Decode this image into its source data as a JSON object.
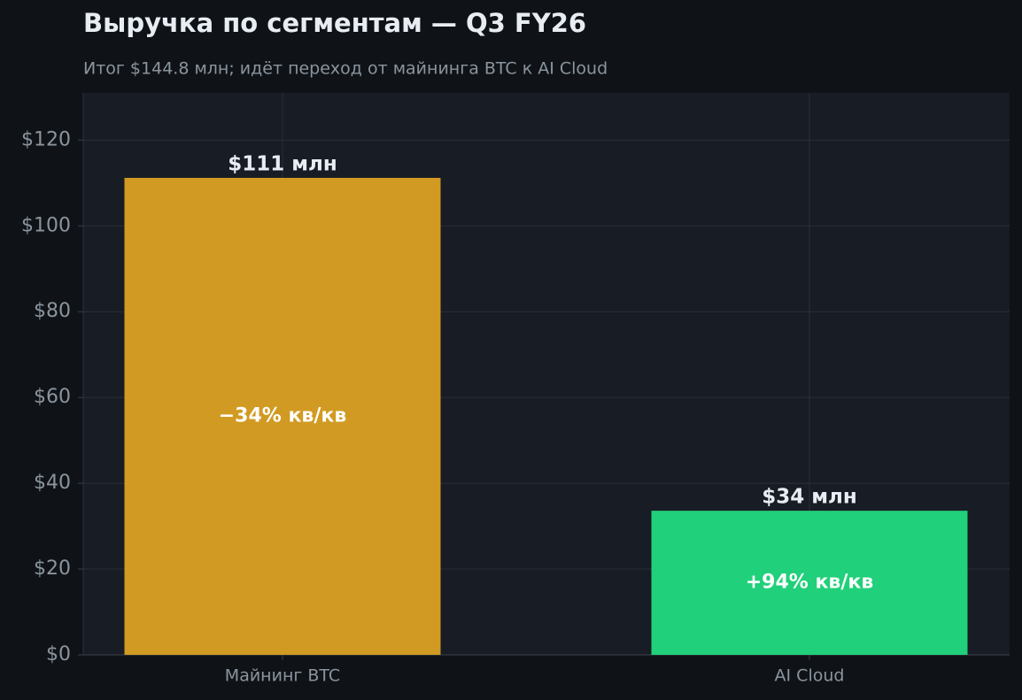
{
  "chart_data": {
    "type": "bar",
    "title": "Выручка по сегментам — Q3 FY26",
    "subtitle": "Итог $144.8 млн; идёт переход от майнинга BTC к AI Cloud",
    "categories": [
      "Майнинг BTC",
      "AI Cloud"
    ],
    "values": [
      111.2,
      33.6
    ],
    "value_labels": [
      "$111 млн",
      "$34 млн"
    ],
    "annotations": [
      "−34% кв/кв",
      "+94% кв/кв"
    ],
    "colors": [
      "#d19a22",
      "#21d07a"
    ],
    "ylim": [
      0,
      131
    ],
    "yticks": [
      {
        "value": 0,
        "label": "$0"
      },
      {
        "value": 20,
        "label": "$20"
      },
      {
        "value": 40,
        "label": "$40"
      },
      {
        "value": 60,
        "label": "$60"
      },
      {
        "value": 80,
        "label": "$80"
      },
      {
        "value": 100,
        "label": "$100"
      },
      {
        "value": 120,
        "label": "$120"
      }
    ],
    "grid": true
  }
}
